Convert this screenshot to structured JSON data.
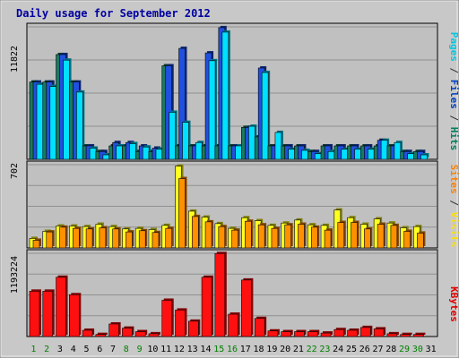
{
  "chart_data": {
    "type": "bar",
    "title": "Daily usage for September 2012",
    "days": [
      "1",
      "2",
      "3",
      "4",
      "5",
      "6",
      "7",
      "8",
      "9",
      "10",
      "11",
      "12",
      "13",
      "14",
      "15",
      "16",
      "17",
      "18",
      "19",
      "20",
      "21",
      "22",
      "23",
      "24",
      "25",
      "26",
      "27",
      "28",
      "29",
      "30",
      "31"
    ],
    "weekend_days": [
      "1",
      "2",
      "8",
      "9",
      "15",
      "16",
      "22",
      "23",
      "29",
      "30"
    ],
    "panels": {
      "top": {
        "ymax_label": "11822",
        "ymax": 11822,
        "side_labels": [
          {
            "text": "Pages",
            "color": "#00c8e0"
          },
          {
            "text": " / ",
            "color": "#333333"
          },
          {
            "text": "Files",
            "color": "#0040c0"
          },
          {
            "text": " / ",
            "color": "#333333"
          },
          {
            "text": "Hits",
            "color": "#008060"
          }
        ],
        "series": [
          {
            "key": "hits",
            "color": "#1a7a5e",
            "values": [
              6900,
              6900,
              9350,
              6900,
              1200,
              700,
              1200,
              1200,
              700,
              700,
              8350,
              1200,
              1200,
              1200,
              1200,
              1200,
              2850,
              2000,
              1200,
              1200,
              1200,
              700,
              1200,
              1200,
              1200,
              1200,
              1200,
              1200,
              700,
              700,
              0
            ]
          },
          {
            "key": "files",
            "color": "#2050e0",
            "values": [
              6900,
              6900,
              9350,
              6900,
              1200,
              700,
              1500,
              1500,
              1200,
              1000,
              8350,
              9900,
              1200,
              9500,
              11750,
              1200,
              2850,
              8150,
              1200,
              1200,
              1200,
              700,
              1200,
              1200,
              1200,
              1200,
              1700,
              1200,
              700,
              700,
              0
            ]
          },
          {
            "key": "pages",
            "color": "#00e0ff",
            "values": [
              6700,
              6500,
              8850,
              6000,
              1000,
              400,
              1200,
              1400,
              1100,
              900,
              4200,
              3300,
              1500,
              8800,
              11350,
              1200,
              2950,
              7750,
              2400,
              900,
              800,
              500,
              700,
              900,
              900,
              900,
              1700,
              1500,
              500,
              400,
              0
            ]
          }
        ]
      },
      "middle": {
        "ymax_label": "702",
        "ymax": 702,
        "side_labels": [
          {
            "text": "Sites",
            "color": "#ff8000"
          },
          {
            "text": " / ",
            "color": "#333333"
          },
          {
            "text": "Visits",
            "color": "#ffe000"
          }
        ],
        "series": [
          {
            "key": "visits",
            "color": "#ffff20",
            "values": [
              80,
              140,
              185,
              185,
              180,
              200,
              180,
              160,
              165,
              155,
              190,
              690,
              310,
              260,
              205,
              165,
              255,
              230,
              190,
              210,
              235,
              195,
              190,
              320,
              255,
              200,
              245,
              210,
              170,
              180,
              0
            ]
          },
          {
            "key": "sites",
            "color": "#ff9000",
            "values": [
              65,
              135,
              175,
              165,
              160,
              170,
              160,
              135,
              145,
              130,
              165,
              585,
              265,
              220,
              180,
              150,
              225,
              195,
              165,
              195,
              200,
              175,
              150,
              215,
              215,
              160,
              200,
              190,
              140,
              125,
              0
            ]
          }
        ]
      },
      "bottom": {
        "ymax_label": "1193224",
        "ymax": 1193224,
        "side_labels": [
          {
            "text": "KBytes",
            "color": "#e00000"
          }
        ],
        "series": [
          {
            "key": "kbytes",
            "color": "#ff1010",
            "values": [
              650000,
              650000,
              850000,
              600000,
              90000,
              30000,
              180000,
              120000,
              70000,
              40000,
              520000,
              380000,
              220000,
              850000,
              1190000,
              320000,
              810000,
              260000,
              80000,
              70000,
              70000,
              70000,
              50000,
              100000,
              90000,
              130000,
              110000,
              40000,
              30000,
              30000,
              0
            ]
          }
        ]
      }
    }
  }
}
